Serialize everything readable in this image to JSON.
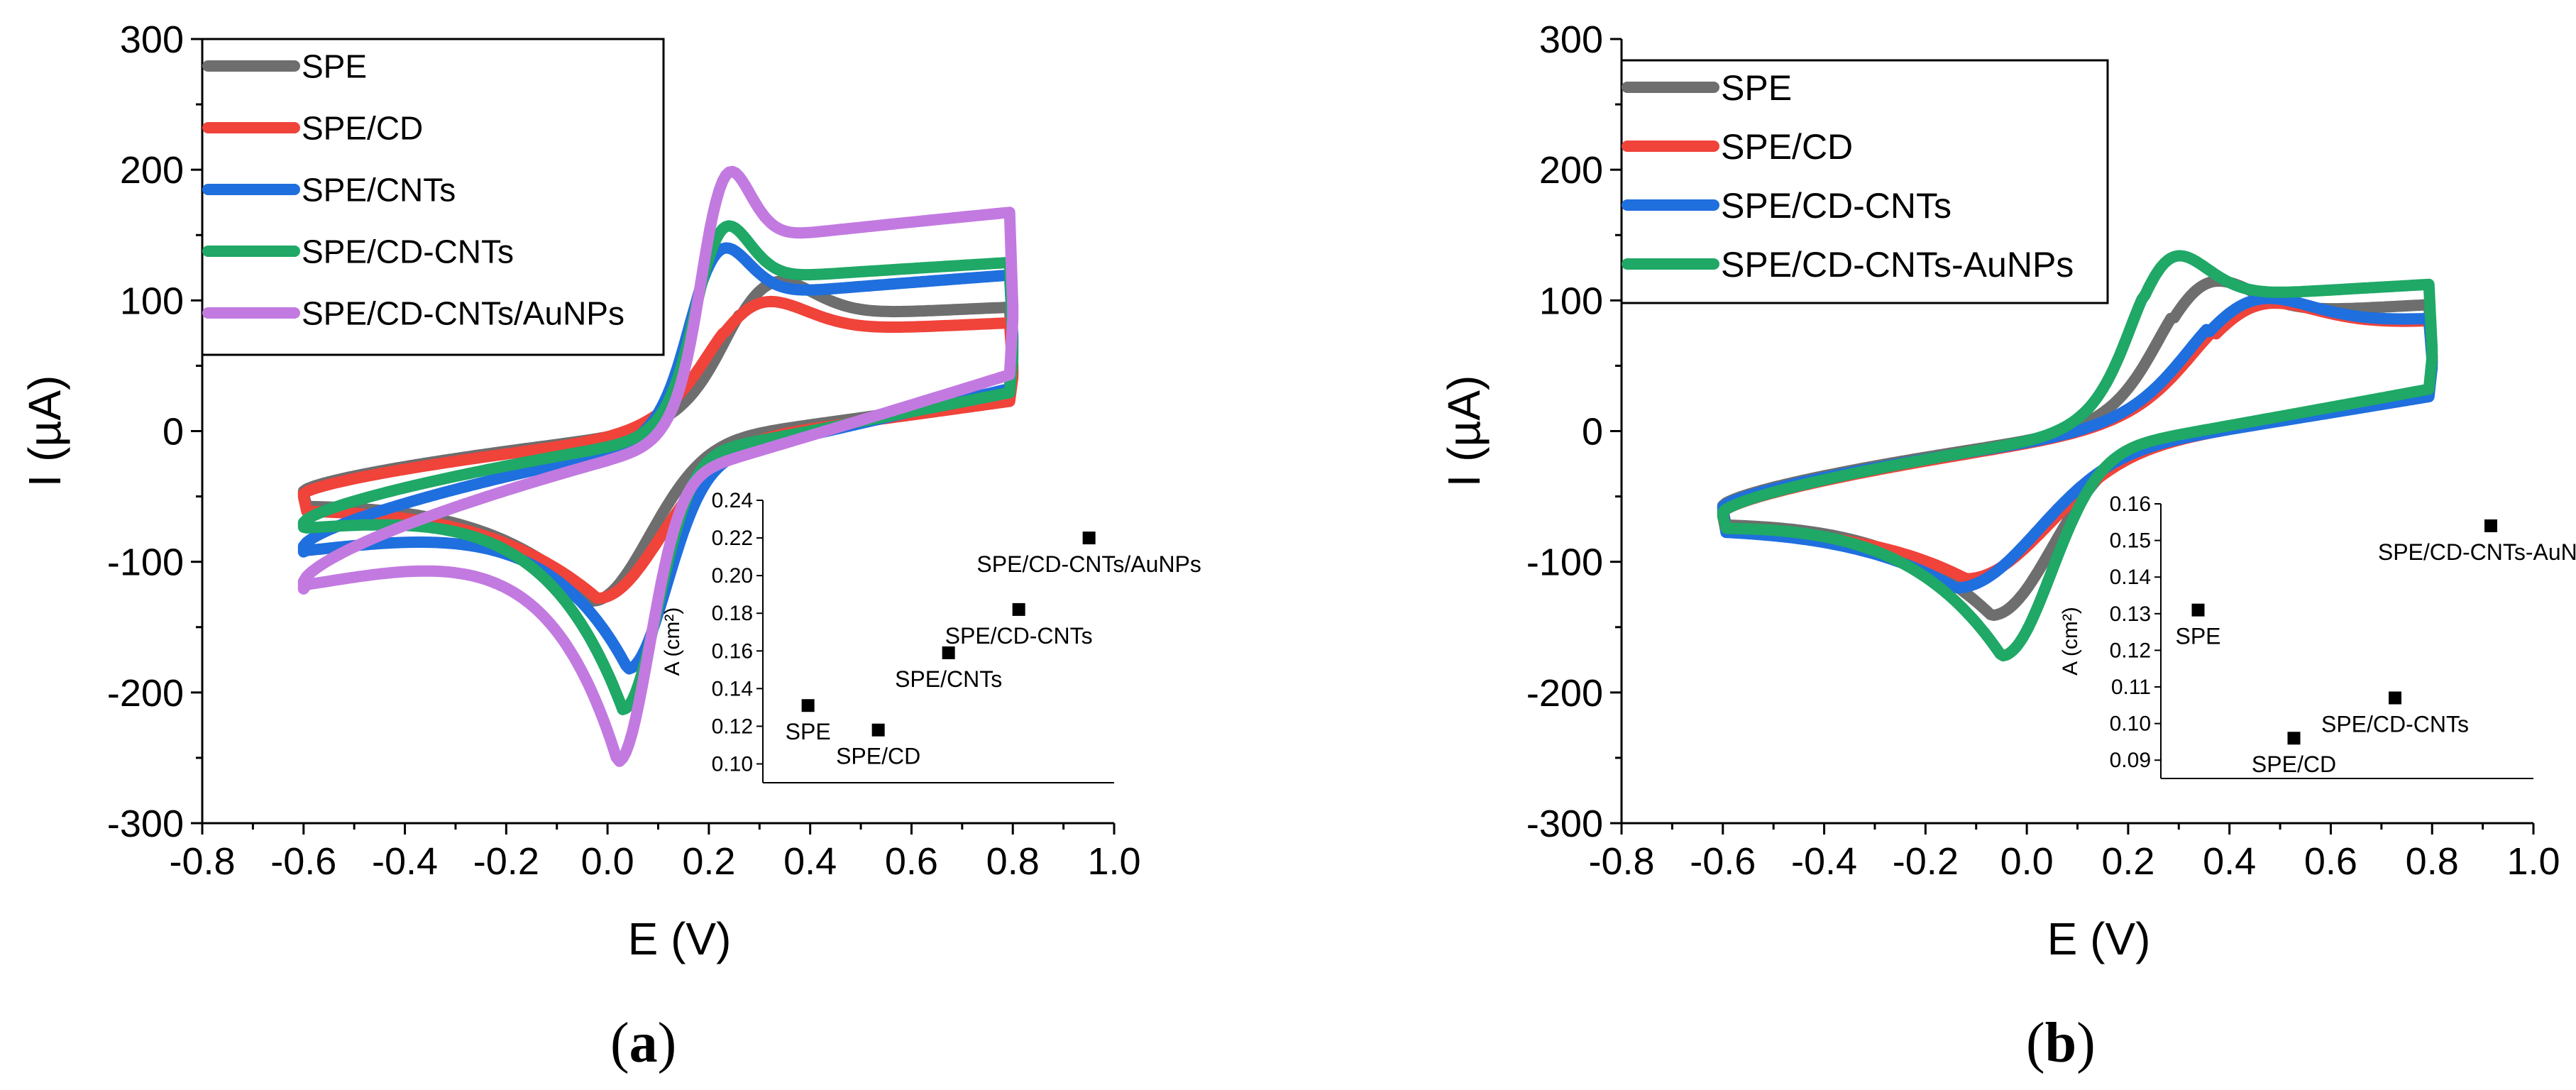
{
  "panels": [
    {
      "caption": "a",
      "chart_data": {
        "type": "line",
        "title": "",
        "xlabel": "E (V)",
        "ylabel": "I (µA)",
        "xlim": [
          -0.8,
          1.0
        ],
        "ylim": [
          -300,
          300
        ],
        "xticks": [
          "-0.8",
          "-0.6",
          "-0.4",
          "-0.2",
          "0.0",
          "0.2",
          "0.4",
          "0.6",
          "0.8",
          "1.0"
        ],
        "yticks": [
          "-300",
          "-200",
          "-100",
          "0",
          "100",
          "200",
          "300"
        ],
        "legend_position": "top-left",
        "series": [
          {
            "name": "SPE",
            "color": "#6e6e6e",
            "peak_anodic": {
              "e": 0.26,
              "i": 150
            },
            "peak_cathodic": {
              "e": -0.03,
              "i": -130
            },
            "ends": {
              "start": -46,
              "upper": 50
            },
            "width": 0.16
          },
          {
            "name": "SPE/CD",
            "color": "#f0433a",
            "peak_anodic": {
              "e": 0.23,
              "i": 130
            },
            "peak_cathodic": {
              "e": -0.02,
              "i": -128
            },
            "ends": {
              "start": -48,
              "upper": 46
            },
            "width": 0.18
          },
          {
            "name": "SPE/CNTs",
            "color": "#1f6fde",
            "peak_anodic": {
              "e": 0.18,
              "i": 185
            },
            "peak_cathodic": {
              "e": 0.04,
              "i": -182
            },
            "ends": {
              "start": -88,
              "upper": 72
            },
            "width": 0.11
          },
          {
            "name": "SPE/CD-CNTs",
            "color": "#1fa866",
            "peak_anodic": {
              "e": 0.19,
              "i": 207
            },
            "peak_cathodic": {
              "e": 0.03,
              "i": -213
            },
            "ends": {
              "start": -70,
              "upper": 62
            },
            "width": 0.1
          },
          {
            "name": "SPE/CD-CNTs/AuNPs",
            "color": "#c27ae0",
            "peak_anodic": {
              "e": 0.2,
              "i": 262
            },
            "peak_cathodic": {
              "e": 0.02,
              "i": -253
            },
            "ends": {
              "start": -115,
              "upper": 95
            },
            "width": 0.09
          }
        ],
        "inset": {
          "ylabel": "A (cm²)",
          "ylim": [
            0.09,
            0.24
          ],
          "xlim": [
            0.3,
            1.0
          ],
          "yticks": [
            "0.10",
            "0.12",
            "0.14",
            "0.16",
            "0.18",
            "0.20",
            "0.22",
            "0.24"
          ],
          "points": [
            {
              "label": "SPE",
              "x": 0.39,
              "y": 0.131
            },
            {
              "label": "SPE/CD",
              "x": 0.53,
              "y": 0.118
            },
            {
              "label": "SPE/CNTs",
              "x": 0.67,
              "y": 0.159
            },
            {
              "label": "SPE/CD-CNTs",
              "x": 0.81,
              "y": 0.182
            },
            {
              "label": "SPE/CD-CNTs/AuNPs",
              "x": 0.95,
              "y": 0.22
            }
          ]
        }
      }
    },
    {
      "caption": "b",
      "chart_data": {
        "type": "line",
        "title": "",
        "xlabel": "E (V)",
        "ylabel": "I (µA)",
        "xlim": [
          -0.8,
          1.0
        ],
        "ylim": [
          -300,
          300
        ],
        "xticks": [
          "-0.8",
          "-0.6",
          "-0.4",
          "-0.2",
          "0.0",
          "0.2",
          "0.4",
          "0.6",
          "0.8",
          "1.0"
        ],
        "yticks": [
          "-300",
          "-200",
          "-100",
          "0",
          "100",
          "200",
          "300"
        ],
        "legend_position": "top-left",
        "series": [
          {
            "name": "SPE",
            "color": "#6e6e6e",
            "peak_anodic": {
              "e": 0.29,
              "i": 150
            },
            "peak_cathodic": {
              "e": -0.07,
              "i": -141
            },
            "ends": {
              "start": -57,
              "upper": 58
            },
            "width": 0.17
          },
          {
            "name": "SPE/CD",
            "color": "#f0433a",
            "peak_anodic": {
              "e": 0.37,
              "i": 127
            },
            "peak_cathodic": {
              "e": -0.12,
              "i": -113
            },
            "ends": {
              "start": -62,
              "upper": 58
            },
            "width": 0.22
          },
          {
            "name": "SPE/CD-CNTs",
            "color": "#1f6fde",
            "peak_anodic": {
              "e": 0.36,
              "i": 132
            },
            "peak_cathodic": {
              "e": -0.14,
              "i": -120
            },
            "ends": {
              "start": -58,
              "upper": 54
            },
            "width": 0.22
          },
          {
            "name": "SPE/CD-CNTs-AuNPs",
            "color": "#1fa866",
            "peak_anodic": {
              "e": 0.23,
              "i": 176
            },
            "peak_cathodic": {
              "e": -0.05,
              "i": -172
            },
            "ends": {
              "start": -62,
              "upper": 63
            },
            "width": 0.14
          }
        ],
        "inset": {
          "ylabel": "A (cm²)",
          "ylim": [
            0.085,
            0.16
          ],
          "xlim": [
            0.3,
            1.0
          ],
          "yticks": [
            "0.09",
            "0.10",
            "0.11",
            "0.12",
            "0.13",
            "0.14",
            "0.15",
            "0.16"
          ],
          "points": [
            {
              "label": "SPE",
              "x": 0.37,
              "y": 0.131
            },
            {
              "label": "SPE/CD",
              "x": 0.55,
              "y": 0.096
            },
            {
              "label": "SPE/CD-CNTs",
              "x": 0.74,
              "y": 0.107
            },
            {
              "label": "SPE/CD-CNTs-AuNPs",
              "x": 0.92,
              "y": 0.154
            }
          ]
        }
      }
    }
  ]
}
